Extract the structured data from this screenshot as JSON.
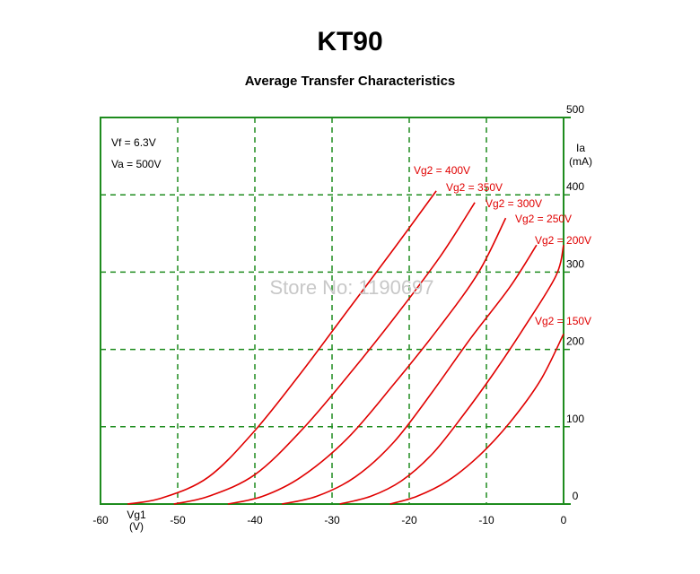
{
  "chart_data": {
    "type": "line",
    "title": "KT90",
    "subtitle": "Average Transfer Characteristics",
    "xlabel": "Vg1",
    "xlabel_unit": "(V)",
    "ylabel": "Ia",
    "ylabel_unit": "(mA)",
    "xlim": [
      -60,
      0
    ],
    "ylim": [
      0,
      500
    ],
    "x_ticks": [
      "-60",
      "-50",
      "-40",
      "-30",
      "-20",
      "-10",
      "0"
    ],
    "y_ticks": [
      "0",
      "100",
      "200",
      "300",
      "400",
      "500"
    ],
    "grid": "dashed",
    "conditions": [
      "Vf = 6.3V",
      "Va = 500V"
    ],
    "watermark": "Store No: 1190697",
    "colors": {
      "frame": "#1e8c1e",
      "grid": "#1e8c1e",
      "series": "#e00000"
    },
    "series": [
      {
        "name": "Vg2 = 400V",
        "x": [
          -56.5,
          -52,
          -46,
          -40,
          -34,
          -28,
          -22,
          -16.5
        ],
        "y": [
          0,
          8,
          35,
          95,
          170,
          250,
          330,
          405
        ]
      },
      {
        "name": "Vg2 = 350V",
        "x": [
          -50.5,
          -46,
          -40,
          -34,
          -28,
          -22,
          -16,
          -11.5
        ],
        "y": [
          0,
          10,
          38,
          95,
          165,
          240,
          320,
          390
        ]
      },
      {
        "name": "Vg2 = 300V",
        "x": [
          -43.5,
          -39,
          -34,
          -28,
          -22,
          -16,
          -11,
          -7.5
        ],
        "y": [
          0,
          10,
          35,
          85,
          155,
          230,
          300,
          370
        ]
      },
      {
        "name": "Vg2 = 250V",
        "x": [
          -36.5,
          -32,
          -27,
          -22,
          -17,
          -12,
          -7,
          -3.5
        ],
        "y": [
          0,
          10,
          35,
          80,
          145,
          215,
          280,
          335
        ]
      },
      {
        "name": "Vg2 = 200V",
        "x": [
          -29,
          -25,
          -21,
          -17,
          -13,
          -9,
          -5,
          -1,
          0
        ],
        "y": [
          0,
          10,
          30,
          65,
          115,
          170,
          230,
          295,
          335
        ]
      },
      {
        "name": "Vg2 = 150V",
        "x": [
          -22.5,
          -19,
          -15,
          -11,
          -7,
          -3,
          0
        ],
        "y": [
          0,
          10,
          30,
          62,
          105,
          160,
          220
        ]
      }
    ]
  }
}
